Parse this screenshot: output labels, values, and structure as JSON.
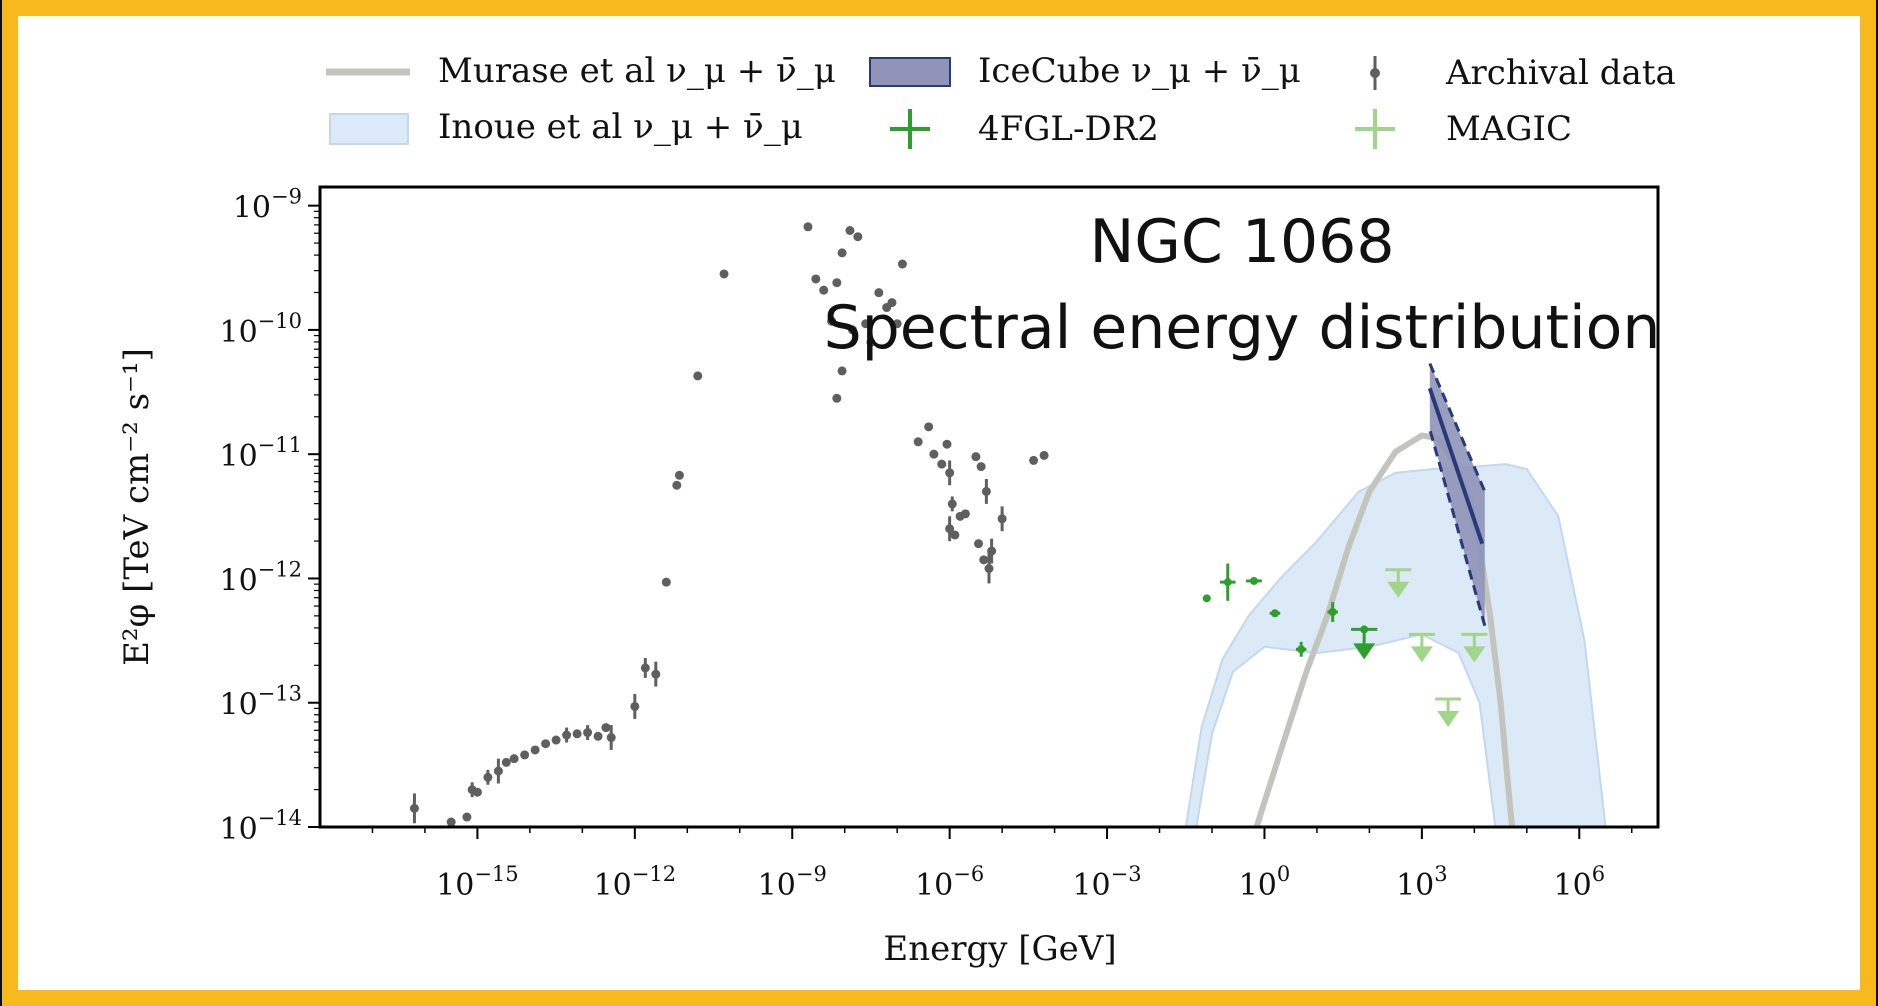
{
  "colors": {
    "frame": "#f8b91c",
    "archival": "#5f5f5f",
    "fermi": "#2ca02c",
    "magic": "#9fd68a",
    "murase": "#c4c4bf",
    "inoue_fill": "#dce9f6",
    "inoue_edge": "#c3d8ef",
    "icecube_fill": "#8f94b8",
    "icecube_edge": "#283a7a"
  },
  "chart_data": {
    "type": "scatter",
    "title": "NGC 1068",
    "subtitle": "Spectral energy distribution",
    "xlabel": "Energy [GeV]",
    "ylabel": "E²φ [TeV cm⁻² s⁻¹]",
    "x_scale": "log",
    "y_scale": "log",
    "xlim_log10": [
      -18.0,
      7.5
    ],
    "ylim_log10": [
      -14,
      -8.85
    ],
    "x_ticks": [
      {
        "log10": -15,
        "base": "10",
        "exp": "−15"
      },
      {
        "log10": -12,
        "base": "10",
        "exp": "−12"
      },
      {
        "log10": -9,
        "base": "10",
        "exp": "−9"
      },
      {
        "log10": -6,
        "base": "10",
        "exp": "−6"
      },
      {
        "log10": -3,
        "base": "10",
        "exp": "−3"
      },
      {
        "log10": 0,
        "base": "10",
        "exp": "0"
      },
      {
        "log10": 3,
        "base": "10",
        "exp": "3"
      },
      {
        "log10": 6,
        "base": "10",
        "exp": "6"
      }
    ],
    "y_ticks": [
      {
        "log10": -9,
        "base": "10",
        "exp": "−9"
      },
      {
        "log10": -10,
        "base": "10",
        "exp": "−10"
      },
      {
        "log10": -11,
        "base": "10",
        "exp": "−11"
      },
      {
        "log10": -12,
        "base": "10",
        "exp": "−12"
      },
      {
        "log10": -13,
        "base": "10",
        "exp": "−13"
      },
      {
        "log10": -14,
        "base": "10",
        "exp": "−14"
      }
    ],
    "grid": false,
    "legend": {
      "placement": "top-outside",
      "entries": [
        {
          "label": "Murase et al ν_μ + ν̄_μ",
          "kind": "line"
        },
        {
          "label": "IceCube ν_μ + ν̄_μ",
          "kind": "band"
        },
        {
          "label": "Archival data",
          "kind": "errorbar-point"
        },
        {
          "label": "Inoue et al ν_μ + ν̄_μ",
          "kind": "fill"
        },
        {
          "label": "4FGL-DR2",
          "kind": "cross"
        },
        {
          "label": "MAGIC",
          "kind": "cross-light"
        }
      ]
    },
    "series": [
      {
        "name": "Archival data",
        "kind": "points_log10",
        "points": [
          [
            -16.2,
            -13.85,
            0.12
          ],
          [
            -15.5,
            -13.96,
            0.05
          ],
          [
            -15.2,
            -13.92,
            0.04
          ],
          [
            -15.1,
            -13.7,
            0.06
          ],
          [
            -15.0,
            -13.72,
            0.05
          ],
          [
            -14.8,
            -13.6,
            0.06
          ],
          [
            -14.6,
            -13.55,
            0.1
          ],
          [
            -14.45,
            -13.48,
            0.05
          ],
          [
            -14.3,
            -13.45,
            0.04
          ],
          [
            -14.1,
            -13.42,
            0.04
          ],
          [
            -13.9,
            -13.38,
            0.05
          ],
          [
            -13.7,
            -13.33,
            0.04
          ],
          [
            -13.5,
            -13.3,
            0.04
          ],
          [
            -13.3,
            -13.26,
            0.06
          ],
          [
            -13.1,
            -13.25,
            0.05
          ],
          [
            -12.9,
            -13.24,
            0.06
          ],
          [
            -12.7,
            -13.27,
            0.05
          ],
          [
            -12.55,
            -13.2,
            0.04
          ],
          [
            -12.45,
            -13.28,
            0.1
          ],
          [
            -12.0,
            -13.03,
            0.1
          ],
          [
            -11.8,
            -12.72,
            0.08
          ],
          [
            -11.6,
            -12.77,
            0.1
          ],
          [
            -11.4,
            -12.03,
            0.04
          ],
          [
            -11.2,
            -11.25,
            0.04
          ],
          [
            -11.15,
            -11.17,
            0.04
          ],
          [
            -10.8,
            -10.37,
            0.04
          ],
          [
            -10.3,
            -9.55,
            0.04
          ],
          [
            -8.7,
            -9.17,
            0.04
          ],
          [
            -8.55,
            -9.59,
            0.04
          ],
          [
            -8.4,
            -9.68,
            0.04
          ],
          [
            -8.25,
            -9.93,
            0.04
          ],
          [
            -8.15,
            -9.62,
            0.04
          ],
          [
            -8.05,
            -9.38,
            0.04
          ],
          [
            -7.9,
            -9.2,
            0.04
          ],
          [
            -7.75,
            -9.25,
            0.04
          ],
          [
            -7.6,
            -9.95,
            0.04
          ],
          [
            -7.5,
            -10.1,
            0.04
          ],
          [
            -7.35,
            -9.7,
            0.04
          ],
          [
            -7.2,
            -9.82,
            0.04
          ],
          [
            -7.1,
            -9.78,
            0.04
          ],
          [
            -7.0,
            -9.95,
            0.04
          ],
          [
            -6.9,
            -9.47,
            0.04
          ],
          [
            -8.05,
            -10.33,
            0.04
          ],
          [
            -8.15,
            -10.55,
            0.04
          ],
          [
            -7.85,
            -10.0,
            0.04
          ],
          [
            -6.6,
            -10.9,
            0.04
          ],
          [
            -6.4,
            -10.78,
            0.04
          ],
          [
            -6.3,
            -11.0,
            0.04
          ],
          [
            -6.15,
            -11.08,
            0.05
          ],
          [
            -6.05,
            -10.92,
            0.05
          ],
          [
            -6.0,
            -11.15,
            0.1
          ],
          [
            -5.95,
            -11.4,
            0.06
          ],
          [
            -6.0,
            -11.6,
            0.1
          ],
          [
            -5.9,
            -11.65,
            0.05
          ],
          [
            -5.8,
            -11.5,
            0.05
          ],
          [
            -5.7,
            -11.48,
            0.05
          ],
          [
            -5.5,
            -11.02,
            0.05
          ],
          [
            -5.4,
            -11.1,
            0.05
          ],
          [
            -5.3,
            -11.3,
            0.1
          ],
          [
            -5.45,
            -11.72,
            0.05
          ],
          [
            -5.35,
            -11.85,
            0.05
          ],
          [
            -5.2,
            -11.78,
            0.1
          ],
          [
            -5.25,
            -11.92,
            0.12
          ],
          [
            -5.0,
            -11.52,
            0.1
          ],
          [
            -4.4,
            -11.05,
            0.04
          ],
          [
            -4.2,
            -11.01,
            0.04
          ]
        ]
      },
      {
        "name": "4FGL-DR2",
        "kind": "crosses_log10",
        "points": [
          [
            -1.1,
            -12.16,
            0.12,
            0.0,
            false
          ],
          [
            -0.7,
            -12.03,
            0.3,
            0.15,
            false
          ],
          [
            -0.2,
            -12.02,
            0.3,
            0.0,
            false
          ],
          [
            0.2,
            -12.28,
            0.2,
            0.0,
            false
          ],
          [
            0.7,
            -12.57,
            0.2,
            0.06,
            false
          ],
          [
            1.3,
            -12.27,
            0.2,
            0.08,
            false
          ],
          [
            1.9,
            -12.41,
            0.5,
            0.0,
            true
          ]
        ]
      },
      {
        "name": "MAGIC",
        "kind": "upper_limits_log10",
        "points": [
          [
            2.55,
            -11.93
          ],
          [
            3.0,
            -12.45
          ],
          [
            3.5,
            -12.97
          ],
          [
            4.0,
            -12.45
          ]
        ]
      },
      {
        "name": "Murase et al ν_μ + ν̄_μ",
        "kind": "curve_log10",
        "points": [
          [
            -0.15,
            -14.0
          ],
          [
            0.3,
            -13.4
          ],
          [
            0.8,
            -12.75
          ],
          [
            1.2,
            -12.3
          ],
          [
            1.6,
            -11.75
          ],
          [
            2.0,
            -11.3
          ],
          [
            2.5,
            -10.98
          ],
          [
            3.0,
            -10.85
          ],
          [
            3.3,
            -10.87
          ],
          [
            3.6,
            -11.05
          ],
          [
            3.9,
            -11.35
          ],
          [
            4.1,
            -11.75
          ],
          [
            4.3,
            -12.3
          ],
          [
            4.5,
            -13.0
          ],
          [
            4.65,
            -13.7
          ],
          [
            4.72,
            -14.0
          ]
        ]
      },
      {
        "name": "Inoue et al ν_μ + ν̄_μ",
        "kind": "band_log10",
        "upper": [
          [
            -1.5,
            -14.0
          ],
          [
            -1.2,
            -13.2
          ],
          [
            -0.8,
            -12.65
          ],
          [
            -0.3,
            -12.3
          ],
          [
            0.3,
            -12.0
          ],
          [
            1.0,
            -11.7
          ],
          [
            1.8,
            -11.3
          ],
          [
            2.5,
            -11.15
          ],
          [
            3.2,
            -11.12
          ],
          [
            4.0,
            -11.1
          ],
          [
            4.6,
            -11.08
          ],
          [
            5.0,
            -11.12
          ],
          [
            5.6,
            -11.5
          ],
          [
            6.1,
            -12.5
          ],
          [
            6.5,
            -14.0
          ]
        ],
        "lower": [
          [
            6.5,
            -14.0
          ],
          [
            4.4,
            -14.0
          ],
          [
            4.1,
            -13.0
          ],
          [
            3.7,
            -12.6
          ],
          [
            3.0,
            -12.45
          ],
          [
            2.0,
            -12.55
          ],
          [
            1.0,
            -12.6
          ],
          [
            0.0,
            -12.55
          ],
          [
            -0.6,
            -12.75
          ],
          [
            -1.0,
            -13.25
          ],
          [
            -1.3,
            -14.0
          ]
        ]
      },
      {
        "name": "IceCube ν_μ + ν̄_μ",
        "kind": "butterfly_log10",
        "upper": [
          [
            3.15,
            -10.27
          ],
          [
            4.2,
            -11.3
          ]
        ],
        "lower": [
          [
            4.2,
            -12.38
          ],
          [
            3.15,
            -10.8
          ]
        ],
        "center": [
          [
            3.15,
            -10.47
          ],
          [
            4.15,
            -11.72
          ]
        ]
      }
    ]
  }
}
